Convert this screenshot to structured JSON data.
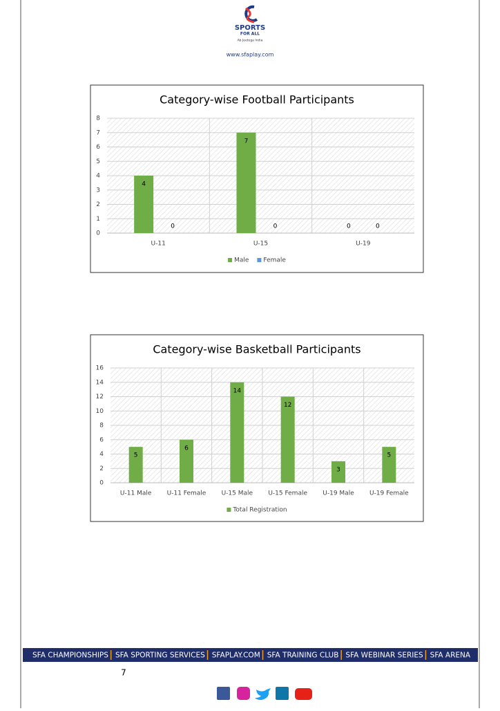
{
  "header": {
    "logo_title": "SPORTS",
    "logo_subtitle": "FOR ALL",
    "tagline": "Ab Jeetega India",
    "url": "www.sfaplay.com"
  },
  "chart_data": [
    {
      "type": "bar",
      "title": "Category-wise Football Participants",
      "categories": [
        "U-11",
        "U-15",
        "U-19"
      ],
      "series": [
        {
          "name": "Male",
          "color": "#70ad47",
          "values": [
            4,
            7,
            0
          ]
        },
        {
          "name": "Female",
          "color": "#5b9bd5",
          "values": [
            0,
            0,
            0
          ]
        }
      ],
      "ylim": [
        0,
        8
      ],
      "yticks": [
        0,
        1,
        2,
        3,
        4,
        5,
        6,
        7,
        8
      ],
      "grid": true,
      "legend": "bottom"
    },
    {
      "type": "bar",
      "title": "Category-wise Basketball Participants",
      "categories": [
        "U-11 Male",
        "U-11 Female",
        "U-15 Male",
        "U-15 Female",
        "U-19 Male",
        "U-19 Female"
      ],
      "series": [
        {
          "name": "Total Registration",
          "color": "#70ad47",
          "values": [
            5,
            6,
            14,
            12,
            3,
            5
          ]
        }
      ],
      "ylim": [
        0,
        16
      ],
      "yticks": [
        0,
        2,
        4,
        6,
        8,
        10,
        12,
        14,
        16
      ],
      "grid": true,
      "legend": "bottom"
    }
  ],
  "footer": {
    "banner": [
      "SFA CHAMPIONSHIPS",
      "SFA SPORTING SERVICES",
      "SFAPLAY.COM",
      "SFA TRAINING CLUB",
      "SFA WEBINAR SERIES",
      "SFA ARENA"
    ],
    "page_number": "7"
  }
}
